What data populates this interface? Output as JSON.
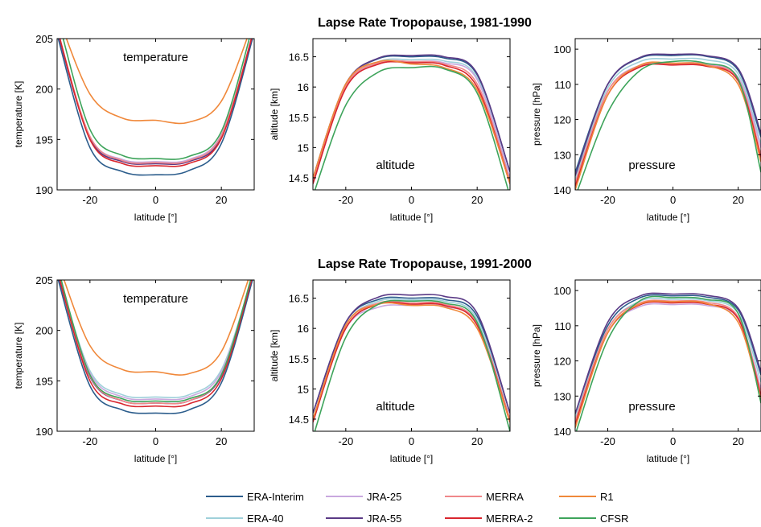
{
  "sections": [
    {
      "title": "Lapse Rate Tropopause, 1981-1990"
    },
    {
      "title": "Lapse Rate Tropopause, 1991-2000"
    }
  ],
  "legend": [
    {
      "name": "ERA-Interim",
      "color": "#2c5d8c"
    },
    {
      "name": "JRA-25",
      "color": "#c9a8df"
    },
    {
      "name": "MERRA",
      "color": "#f0878a"
    },
    {
      "name": "R1",
      "color": "#f0883a"
    },
    {
      "name": "ERA-40",
      "color": "#9fd0da"
    },
    {
      "name": "JRA-55",
      "color": "#5a3a86"
    },
    {
      "name": "MERRA-2",
      "color": "#d9262e"
    },
    {
      "name": "CFSR",
      "color": "#3ea45b"
    }
  ],
  "chart_data": [
    {
      "type": "line",
      "period": "1981-1990",
      "variable": "temperature",
      "title": "temperature",
      "xlabel": "latitude [°]",
      "ylabel": "temperature [K]",
      "xlim": [
        -30,
        30
      ],
      "ylim": [
        190,
        205
      ],
      "yreverse": false,
      "xticks": [
        -20,
        0,
        20
      ],
      "yticks": [
        190,
        195,
        200,
        205
      ],
      "x": [
        -30,
        -20,
        -10,
        0,
        10,
        20,
        30
      ],
      "series": [
        {
          "name": "ERA-Interim",
          "values": [
            205.4,
            194.2,
            191.8,
            191.5,
            191.9,
            194.6,
            205.6
          ]
        },
        {
          "name": "ERA-40",
          "values": [
            205.8,
            195.2,
            192.9,
            192.6,
            192.9,
            195.4,
            205.9
          ]
        },
        {
          "name": "JRA-25",
          "values": [
            205.8,
            195.3,
            193.0,
            192.8,
            193.0,
            195.5,
            205.9
          ]
        },
        {
          "name": "JRA-55",
          "values": [
            205.8,
            195.1,
            192.8,
            192.6,
            192.8,
            195.2,
            205.8
          ]
        },
        {
          "name": "MERRA",
          "values": [
            206.0,
            195.3,
            192.9,
            192.7,
            192.9,
            195.4,
            206.0
          ]
        },
        {
          "name": "MERRA-2",
          "values": [
            206.0,
            195.0,
            192.6,
            192.4,
            192.6,
            195.1,
            206.0
          ]
        },
        {
          "name": "R1",
          "values": [
            207.5,
            199.5,
            197.1,
            196.9,
            196.7,
            198.8,
            207.0
          ]
        },
        {
          "name": "CFSR",
          "values": [
            207.3,
            196.0,
            193.4,
            193.1,
            193.3,
            195.8,
            206.8
          ]
        }
      ]
    },
    {
      "type": "line",
      "period": "1981-1990",
      "variable": "altitude",
      "title": "altitude",
      "xlabel": "latitude [°]",
      "ylabel": "altitude [km]",
      "xlim": [
        -30,
        30
      ],
      "ylim": [
        14.3,
        16.8
      ],
      "yreverse": false,
      "xticks": [
        -20,
        0,
        20
      ],
      "yticks": [
        14.5,
        15,
        15.5,
        16,
        16.5
      ],
      "x": [
        -30,
        -20,
        -10,
        0,
        10,
        20,
        30
      ],
      "series": [
        {
          "name": "ERA-Interim",
          "values": [
            14.5,
            16.05,
            16.47,
            16.5,
            16.48,
            16.2,
            14.6
          ]
        },
        {
          "name": "ERA-40",
          "values": [
            14.4,
            16.0,
            16.42,
            16.45,
            16.43,
            16.15,
            14.5
          ]
        },
        {
          "name": "JRA-25",
          "values": [
            14.4,
            16.0,
            16.4,
            16.42,
            16.4,
            16.12,
            14.5
          ]
        },
        {
          "name": "JRA-55",
          "values": [
            14.5,
            16.05,
            16.48,
            16.52,
            16.5,
            16.22,
            14.6
          ]
        },
        {
          "name": "MERRA",
          "values": [
            14.45,
            16.02,
            16.4,
            16.42,
            16.38,
            16.05,
            14.45
          ]
        },
        {
          "name": "MERRA-2",
          "values": [
            14.4,
            15.98,
            16.38,
            16.4,
            16.36,
            16.0,
            14.4
          ]
        },
        {
          "name": "R1",
          "values": [
            14.5,
            16.05,
            16.42,
            16.38,
            16.32,
            15.95,
            14.4
          ]
        },
        {
          "name": "CFSR",
          "values": [
            14.2,
            15.7,
            16.25,
            16.32,
            16.3,
            15.9,
            14.2
          ]
        }
      ]
    },
    {
      "type": "line",
      "period": "1981-1990",
      "variable": "pressure",
      "title": "pressure",
      "xlabel": "latitude [°]",
      "ylabel": "pressure [hPa]",
      "xlim": [
        -30,
        27
      ],
      "ylim": [
        97,
        140
      ],
      "yreverse": true,
      "xticks": [
        -20,
        0,
        20
      ],
      "yticks": [
        100,
        110,
        120,
        130,
        140
      ],
      "x": [
        -30,
        -20,
        -10,
        0,
        10,
        20,
        27
      ],
      "series": [
        {
          "name": "ERA-Interim",
          "values": [
            135,
            110,
            102.5,
            101.8,
            102.0,
            106,
            125
          ]
        },
        {
          "name": "ERA-40",
          "values": [
            137,
            111,
            103.5,
            102.8,
            103.0,
            107,
            127
          ]
        },
        {
          "name": "JRA-25",
          "values": [
            138,
            112,
            104.5,
            104.0,
            104.2,
            108,
            128
          ]
        },
        {
          "name": "JRA-55",
          "values": [
            136,
            110,
            102.3,
            101.5,
            101.8,
            105.5,
            124
          ]
        },
        {
          "name": "MERRA",
          "values": [
            138,
            112,
            104.8,
            104.2,
            104.5,
            108.5,
            130
          ]
        },
        {
          "name": "MERRA-2",
          "values": [
            139,
            113,
            105.0,
            104.5,
            104.8,
            109,
            131
          ]
        },
        {
          "name": "R1",
          "values": [
            140,
            113,
            104.5,
            104.0,
            104.5,
            110,
            132
          ]
        },
        {
          "name": "CFSR",
          "values": [
            142,
            118,
            106.0,
            103.5,
            104.0,
            108.5,
            135
          ]
        }
      ]
    },
    {
      "type": "line",
      "period": "1991-2000",
      "variable": "temperature",
      "title": "temperature",
      "xlabel": "latitude [°]",
      "ylabel": "temperature [K]",
      "xlim": [
        -30,
        30
      ],
      "ylim": [
        190,
        205
      ],
      "yreverse": false,
      "xticks": [
        -20,
        0,
        20
      ],
      "yticks": [
        190,
        195,
        200,
        205
      ],
      "x": [
        -30,
        -20,
        -10,
        0,
        10,
        20,
        30
      ],
      "series": [
        {
          "name": "ERA-Interim",
          "values": [
            205.4,
            194.5,
            192.1,
            191.8,
            192.1,
            194.8,
            205.6
          ]
        },
        {
          "name": "ERA-40",
          "values": [
            206.0,
            196.0,
            193.6,
            193.4,
            193.6,
            196.1,
            206.0
          ]
        },
        {
          "name": "JRA-25",
          "values": [
            206.0,
            195.8,
            193.4,
            193.2,
            193.4,
            195.9,
            206.0
          ]
        },
        {
          "name": "JRA-55",
          "values": [
            205.8,
            195.4,
            193.0,
            192.8,
            193.0,
            195.5,
            205.8
          ]
        },
        {
          "name": "MERRA",
          "values": [
            206.0,
            195.5,
            193.0,
            192.8,
            193.0,
            195.6,
            206.0
          ]
        },
        {
          "name": "MERRA-2",
          "values": [
            206.0,
            195.0,
            192.7,
            192.5,
            192.7,
            195.2,
            206.0
          ]
        },
        {
          "name": "R1",
          "values": [
            207.0,
            198.5,
            196.1,
            195.9,
            195.7,
            197.9,
            206.8
          ]
        },
        {
          "name": "CFSR",
          "values": [
            206.5,
            195.6,
            193.2,
            193.0,
            193.2,
            195.6,
            206.3
          ]
        }
      ]
    },
    {
      "type": "line",
      "period": "1991-2000",
      "variable": "altitude",
      "title": "altitude",
      "xlabel": "latitude [°]",
      "ylabel": "altitude [km]",
      "xlim": [
        -30,
        30
      ],
      "ylim": [
        14.3,
        16.8
      ],
      "yreverse": false,
      "xticks": [
        -20,
        0,
        20
      ],
      "yticks": [
        14.5,
        15,
        15.5,
        16,
        16.5
      ],
      "x": [
        -30,
        -20,
        -10,
        0,
        10,
        20,
        30
      ],
      "series": [
        {
          "name": "ERA-Interim",
          "values": [
            14.6,
            16.1,
            16.48,
            16.5,
            16.48,
            16.2,
            14.6
          ]
        },
        {
          "name": "ERA-40",
          "values": [
            14.5,
            16.05,
            16.45,
            16.47,
            16.45,
            16.15,
            14.5
          ]
        },
        {
          "name": "JRA-25",
          "values": [
            14.5,
            16.0,
            16.35,
            16.38,
            16.36,
            16.08,
            14.5
          ]
        },
        {
          "name": "JRA-55",
          "values": [
            14.6,
            16.1,
            16.52,
            16.55,
            16.53,
            16.25,
            14.6
          ]
        },
        {
          "name": "MERRA",
          "values": [
            14.5,
            16.05,
            16.42,
            16.42,
            16.4,
            16.08,
            14.5
          ]
        },
        {
          "name": "MERRA-2",
          "values": [
            14.45,
            16.0,
            16.4,
            16.4,
            16.38,
            16.05,
            14.45
          ]
        },
        {
          "name": "R1",
          "values": [
            14.5,
            16.05,
            16.4,
            16.38,
            16.35,
            16.0,
            14.45
          ]
        },
        {
          "name": "CFSR",
          "values": [
            14.2,
            15.85,
            16.4,
            16.45,
            16.42,
            16.1,
            14.3
          ]
        }
      ]
    },
    {
      "type": "line",
      "period": "1991-2000",
      "variable": "pressure",
      "title": "pressure",
      "xlabel": "latitude [°]",
      "ylabel": "pressure [hPa]",
      "xlim": [
        -30,
        27
      ],
      "ylim": [
        97,
        140
      ],
      "yreverse": true,
      "xticks": [
        -20,
        0,
        20
      ],
      "yticks": [
        100,
        110,
        120,
        130,
        140
      ],
      "x": [
        -30,
        -20,
        -10,
        0,
        10,
        20,
        27
      ],
      "series": [
        {
          "name": "ERA-Interim",
          "values": [
            135,
            110,
            102.0,
            101.5,
            101.8,
            105.5,
            124
          ]
        },
        {
          "name": "ERA-40",
          "values": [
            136,
            111,
            103.0,
            102.5,
            102.8,
            106.5,
            126
          ]
        },
        {
          "name": "JRA-25",
          "values": [
            138,
            112,
            104.5,
            104.0,
            104.2,
            108,
            128
          ]
        },
        {
          "name": "JRA-55",
          "values": [
            135,
            109,
            101.5,
            101.0,
            101.3,
            105,
            123
          ]
        },
        {
          "name": "MERRA",
          "values": [
            137,
            111,
            103.5,
            103.0,
            103.3,
            107.5,
            129
          ]
        },
        {
          "name": "MERRA-2",
          "values": [
            138,
            112,
            104.0,
            103.5,
            103.8,
            108,
            130
          ]
        },
        {
          "name": "R1",
          "values": [
            139,
            112,
            103.8,
            103.2,
            103.6,
            109,
            131
          ]
        },
        {
          "name": "CFSR",
          "values": [
            141,
            114,
            102.8,
            102.0,
            102.5,
            106.5,
            132
          ]
        }
      ]
    }
  ]
}
